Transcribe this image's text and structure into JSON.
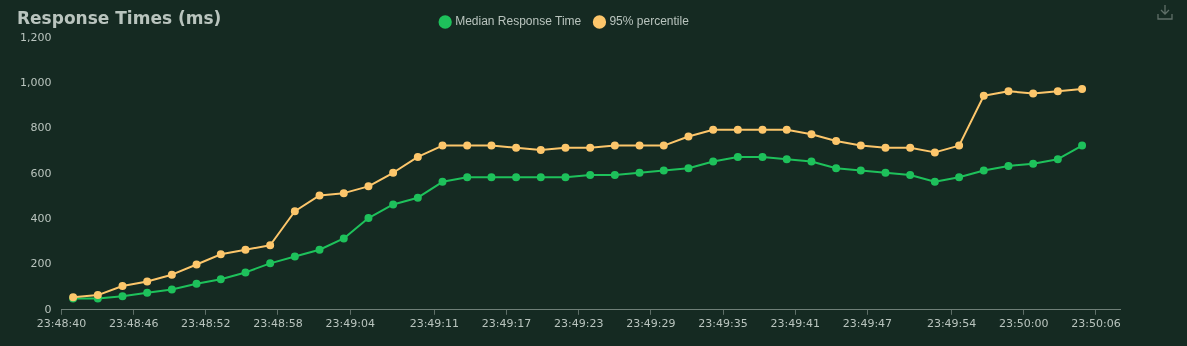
{
  "chart_data": {
    "type": "line",
    "title": "Response Times (ms)",
    "legend": "top",
    "marker": "circle",
    "line_style": "solid",
    "x": [
      23.81138,
      23.81195,
      23.81252,
      23.81309,
      23.81366,
      23.81423,
      23.81479,
      23.81536,
      23.81593,
      23.8165,
      23.81707,
      23.81763,
      23.8182,
      23.81877,
      23.81934,
      23.81991,
      23.82048,
      23.82104,
      23.82161,
      23.82218,
      23.82275,
      23.82332,
      23.82389,
      23.82446,
      23.82502,
      23.82559,
      23.82616,
      23.82673,
      23.8273,
      23.82786,
      23.82843,
      23.829,
      23.82957,
      23.83014,
      23.83071,
      23.83128,
      23.83184,
      23.83241,
      23.83298,
      23.83355,
      23.83412,
      23.83468
    ],
    "xlim": [
      23.811111,
      23.835556
    ],
    "xticks": [
      {
        "value": 23.811111,
        "label": "23:48:40"
      },
      {
        "value": 23.812778,
        "label": "23:48:46"
      },
      {
        "value": 23.814444,
        "label": "23:48:52"
      },
      {
        "value": 23.816111,
        "label": "23:48:58"
      },
      {
        "value": 23.817778,
        "label": "23:49:04"
      },
      {
        "value": 23.819722,
        "label": "23:49:11"
      },
      {
        "value": 23.821389,
        "label": "23:49:17"
      },
      {
        "value": 23.823056,
        "label": "23:49:23"
      },
      {
        "value": 23.824722,
        "label": "23:49:29"
      },
      {
        "value": 23.826389,
        "label": "23:49:35"
      },
      {
        "value": 23.828056,
        "label": "23:49:41"
      },
      {
        "value": 23.829722,
        "label": "23:49:47"
      },
      {
        "value": 23.831667,
        "label": "23:49:54"
      },
      {
        "value": 23.833333,
        "label": "23:50:00"
      },
      {
        "value": 23.835,
        "label": "23:50:06"
      }
    ],
    "ylim": [
      0,
      1200
    ],
    "yticks": [
      0,
      200,
      400,
      600,
      800,
      {
        "value": 1000,
        "label": "1,000"
      },
      {
        "value": 1200,
        "label": "1,200"
      }
    ],
    "series": [
      {
        "name": "Median Response Time",
        "color": "#1ec15b",
        "values": [
          50,
          50,
          60,
          75,
          90,
          115,
          135,
          165,
          205,
          235,
          265,
          315,
          405,
          465,
          495,
          565,
          585,
          585,
          585,
          585,
          585,
          595,
          595,
          605,
          615,
          625,
          655,
          675,
          675,
          665,
          655,
          625,
          615,
          605,
          595,
          565,
          585,
          615,
          635,
          645,
          665,
          725
        ]
      },
      {
        "name": "95% percentile",
        "color": "#fcc66b",
        "values": [
          55,
          65,
          105,
          125,
          155,
          200,
          245,
          265,
          285,
          435,
          505,
          515,
          545,
          605,
          675,
          725,
          725,
          725,
          715,
          705,
          715,
          715,
          725,
          725,
          725,
          765,
          795,
          795,
          795,
          795,
          775,
          745,
          725,
          715,
          715,
          695,
          725,
          945,
          965,
          955,
          965,
          975
        ]
      }
    ]
  }
}
